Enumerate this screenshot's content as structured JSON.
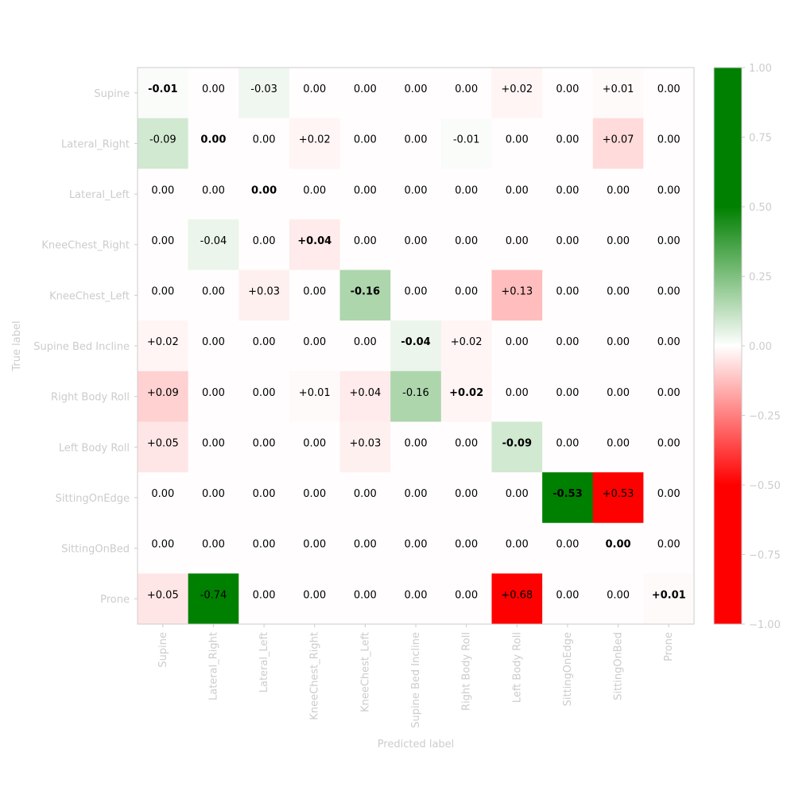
{
  "chart_data": {
    "type": "heatmap",
    "xlabel": "Predicted label",
    "ylabel": "True label",
    "rows": [
      "Supine",
      "Lateral_Right",
      "Lateral_Left",
      "KneeChest_Right",
      "KneeChest_Left",
      "Supine Bed Incline",
      "Right Body Roll",
      "Left Body Roll",
      "SittingOnEdge",
      "SittingOnBed",
      "Prone"
    ],
    "columns": [
      "Supine",
      "Lateral_Right",
      "Lateral_Left",
      "KneeChest_Right",
      "KneeChest_Left",
      "Supine Bed Incline",
      "Right Body Roll",
      "Left Body Roll",
      "SittingOnEdge",
      "SittingOnBed",
      "Prone"
    ],
    "values": [
      [
        -0.01,
        0.0,
        -0.03,
        0.0,
        0.0,
        0.0,
        0.0,
        0.02,
        0.0,
        0.01,
        0.0
      ],
      [
        -0.09,
        0.0,
        0.0,
        0.02,
        0.0,
        0.0,
        -0.01,
        0.0,
        0.0,
        0.07,
        0.0
      ],
      [
        0.0,
        0.0,
        0.0,
        0.0,
        0.0,
        0.0,
        0.0,
        0.0,
        0.0,
        0.0,
        0.0
      ],
      [
        0.0,
        -0.04,
        0.0,
        0.04,
        0.0,
        0.0,
        0.0,
        0.0,
        0.0,
        0.0,
        0.0
      ],
      [
        0.0,
        0.0,
        0.03,
        0.0,
        -0.16,
        0.0,
        0.0,
        0.13,
        0.0,
        0.0,
        0.0
      ],
      [
        0.02,
        0.0,
        0.0,
        0.0,
        0.0,
        -0.04,
        0.02,
        0.0,
        0.0,
        0.0,
        0.0
      ],
      [
        0.09,
        0.0,
        0.0,
        0.01,
        0.04,
        -0.16,
        0.02,
        0.0,
        0.0,
        0.0,
        0.0
      ],
      [
        0.05,
        0.0,
        0.0,
        0.0,
        0.03,
        0.0,
        0.0,
        -0.09,
        0.0,
        0.0,
        0.0
      ],
      [
        0.0,
        0.0,
        0.0,
        0.0,
        0.0,
        0.0,
        0.0,
        0.0,
        -0.53,
        0.53,
        0.0
      ],
      [
        0.0,
        0.0,
        0.0,
        0.0,
        0.0,
        0.0,
        0.0,
        0.0,
        0.0,
        0.0,
        0.0
      ],
      [
        0.05,
        -0.74,
        0.0,
        0.0,
        0.0,
        0.0,
        0.0,
        0.68,
        0.0,
        0.0,
        0.01
      ]
    ],
    "cell_labels": [
      [
        "-0.01",
        "0.00",
        "-0.03",
        "0.00",
        "0.00",
        "0.00",
        "0.00",
        "+0.02",
        "0.00",
        "+0.01",
        "0.00"
      ],
      [
        "-0.09",
        "0.00",
        "0.00",
        "+0.02",
        "0.00",
        "0.00",
        "-0.01",
        "0.00",
        "0.00",
        "+0.07",
        "0.00"
      ],
      [
        "0.00",
        "0.00",
        "0.00",
        "0.00",
        "0.00",
        "0.00",
        "0.00",
        "0.00",
        "0.00",
        "0.00",
        "0.00"
      ],
      [
        "0.00",
        "-0.04",
        "0.00",
        "+0.04",
        "0.00",
        "0.00",
        "0.00",
        "0.00",
        "0.00",
        "0.00",
        "0.00"
      ],
      [
        "0.00",
        "0.00",
        "+0.03",
        "0.00",
        "-0.16",
        "0.00",
        "0.00",
        "+0.13",
        "0.00",
        "0.00",
        "0.00"
      ],
      [
        "+0.02",
        "0.00",
        "0.00",
        "0.00",
        "0.00",
        "-0.04",
        "+0.02",
        "0.00",
        "0.00",
        "0.00",
        "0.00"
      ],
      [
        "+0.09",
        "0.00",
        "0.00",
        "+0.01",
        "+0.04",
        "-0.16",
        "+0.02",
        "0.00",
        "0.00",
        "0.00",
        "0.00"
      ],
      [
        "+0.05",
        "0.00",
        "0.00",
        "0.00",
        "+0.03",
        "0.00",
        "0.00",
        "-0.09",
        "0.00",
        "0.00",
        "0.00"
      ],
      [
        "0.00",
        "0.00",
        "0.00",
        "0.00",
        "0.00",
        "0.00",
        "0.00",
        "0.00",
        "-0.53",
        "+0.53",
        "0.00"
      ],
      [
        "0.00",
        "0.00",
        "0.00",
        "0.00",
        "0.00",
        "0.00",
        "0.00",
        "0.00",
        "0.00",
        "0.00",
        "0.00"
      ],
      [
        "+0.05",
        "-0.74",
        "0.00",
        "0.00",
        "0.00",
        "0.00",
        "0.00",
        "+0.68",
        "0.00",
        "0.00",
        "+0.01"
      ]
    ],
    "color_scale": {
      "min": -1.0,
      "max": 1.0,
      "negative_color": "#008000",
      "zero_color": "#ffffff",
      "positive_color": "#ff0000",
      "neutral_tint": "#fffdfd",
      "ticks": [
        1.0,
        0.75,
        0.5,
        0.25,
        0.0,
        -0.25,
        -0.5,
        -0.75,
        -1.0
      ],
      "tick_labels": [
        "1.00",
        "0.75",
        "0.50",
        "0.25",
        "0.00",
        "−0.25",
        "−0.50",
        "−0.75",
        "−1.00"
      ]
    },
    "grid": false,
    "colorbar_position": "right"
  }
}
